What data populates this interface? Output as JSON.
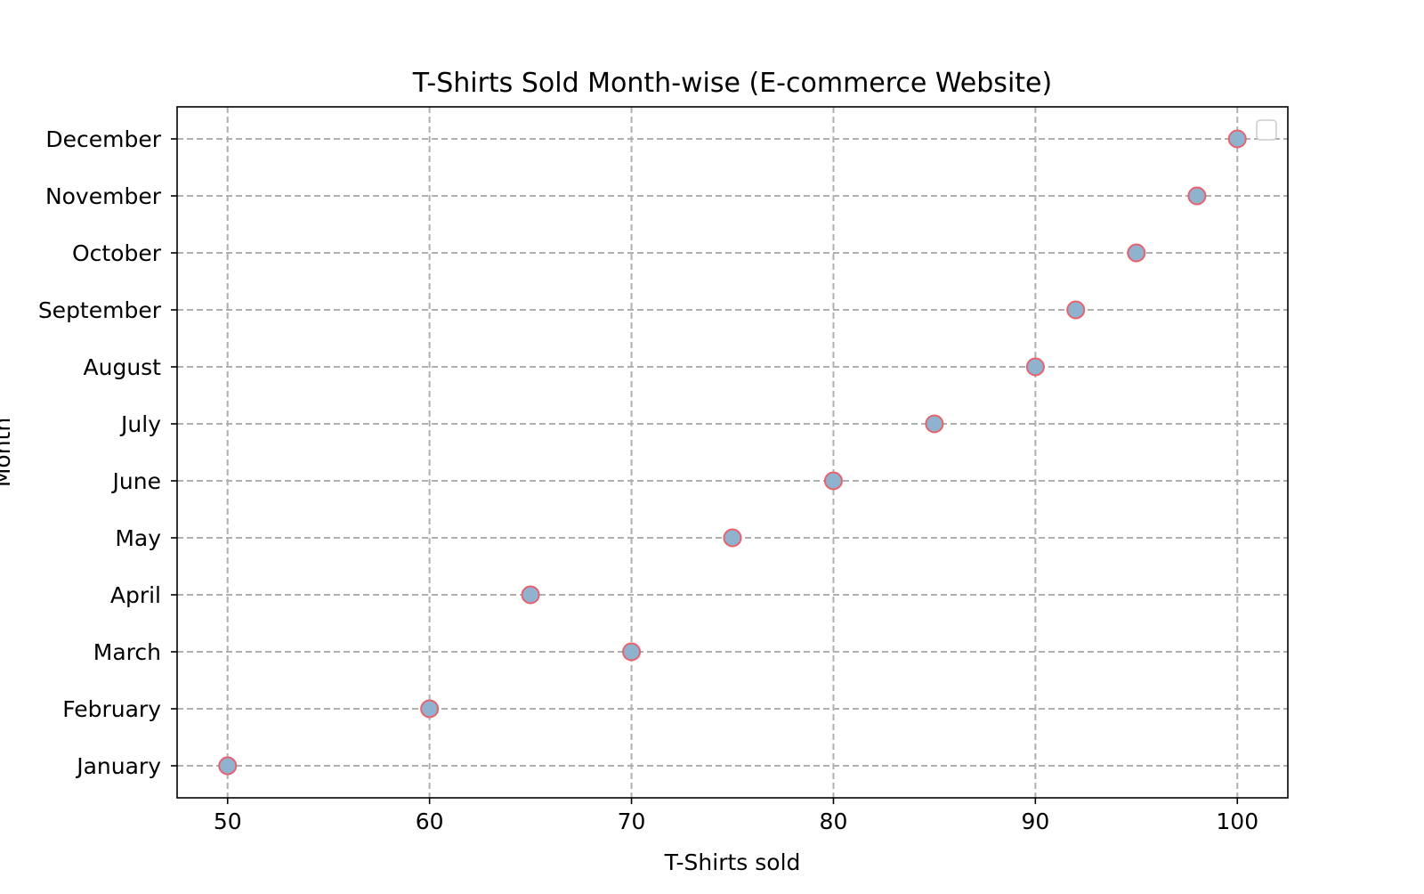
{
  "chart_data": {
    "type": "scatter",
    "title": "T-Shirts Sold Month-wise (E-commerce Website)",
    "xlabel": "T-Shirts sold",
    "ylabel": "Month",
    "categories": [
      "January",
      "February",
      "March",
      "April",
      "May",
      "June",
      "July",
      "August",
      "September",
      "October",
      "November",
      "December"
    ],
    "values": [
      50,
      60,
      70,
      65,
      75,
      80,
      85,
      90,
      92,
      95,
      98,
      100
    ],
    "xlim": [
      47.5,
      102.5
    ],
    "xticks": [
      50,
      60,
      70,
      80,
      90,
      100
    ],
    "grid": true,
    "grid_style": "dashed",
    "legend": "top-right, empty",
    "colors": {
      "marker_fill": "#8fb3cf",
      "marker_edge": "#e8626d",
      "grid": "#b0b0b0",
      "axes": "#000000"
    }
  }
}
